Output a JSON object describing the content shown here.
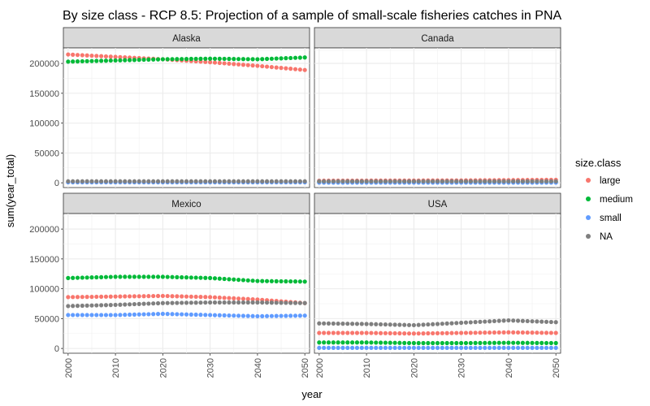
{
  "chart_data": {
    "type": "scatter",
    "title": "By size class - RCP 8.5: Projection of a sample of small-scale fisheries catches in PNA",
    "xlabel": "year",
    "ylabel": "sum(year_total)",
    "xlim": [
      1999,
      2051
    ],
    "ylim": [
      -8000,
      226000
    ],
    "x_ticks": [
      "2000",
      "2010",
      "2020",
      "2030",
      "2040",
      "2050"
    ],
    "y_ticks": [
      "0",
      "50000",
      "100000",
      "150000",
      "200000"
    ],
    "x_start": 2000,
    "x_end": 2050,
    "grid": true,
    "legend_title": "size.class",
    "legend_position": "right",
    "series_colors": {
      "large": "#F8766D",
      "medium": "#00BA38",
      "small": "#619CFF",
      "NA": "#7F7F7F"
    },
    "legend": [
      "large",
      "medium",
      "small",
      "NA"
    ],
    "panels": [
      {
        "label": "Alaska",
        "series": [
          {
            "name": "large",
            "anchors": [
              [
                2000,
                215000
              ],
              [
                2010,
                211000
              ],
              [
                2020,
                207000
              ],
              [
                2030,
                202000
              ],
              [
                2040,
                196000
              ],
              [
                2050,
                189000
              ]
            ]
          },
          {
            "name": "medium",
            "anchors": [
              [
                2000,
                203000
              ],
              [
                2010,
                205000
              ],
              [
                2020,
                207000
              ],
              [
                2030,
                208000
              ],
              [
                2040,
                207000
              ],
              [
                2050,
                210000
              ]
            ]
          },
          {
            "name": "small",
            "anchors": [
              [
                2000,
                800
              ],
              [
                2050,
                800
              ]
            ]
          },
          {
            "name": "NA",
            "anchors": [
              [
                2000,
                2500
              ],
              [
                2050,
                2500
              ]
            ]
          }
        ]
      },
      {
        "label": "Canada",
        "series": [
          {
            "name": "large",
            "anchors": [
              [
                2000,
                3500
              ],
              [
                2030,
                4000
              ],
              [
                2050,
                5000
              ]
            ]
          },
          {
            "name": "medium",
            "anchors": [
              [
                2000,
                1500
              ],
              [
                2050,
                1500
              ]
            ]
          },
          {
            "name": "small",
            "anchors": [
              [
                2000,
                300
              ],
              [
                2050,
                300
              ]
            ]
          },
          {
            "name": "NA",
            "anchors": [
              [
                2000,
                2500
              ],
              [
                2050,
                2500
              ]
            ]
          }
        ]
      },
      {
        "label": "Mexico",
        "series": [
          {
            "name": "large",
            "anchors": [
              [
                2000,
                86000
              ],
              [
                2010,
                87000
              ],
              [
                2020,
                88000
              ],
              [
                2030,
                86000
              ],
              [
                2040,
                82000
              ],
              [
                2050,
                76000
              ]
            ]
          },
          {
            "name": "medium",
            "anchors": [
              [
                2000,
                118000
              ],
              [
                2010,
                120000
              ],
              [
                2020,
                120000
              ],
              [
                2030,
                118000
              ],
              [
                2040,
                113000
              ],
              [
                2050,
                112000
              ]
            ]
          },
          {
            "name": "small",
            "anchors": [
              [
                2000,
                56000
              ],
              [
                2010,
                56000
              ],
              [
                2020,
                58000
              ],
              [
                2030,
                56000
              ],
              [
                2040,
                54000
              ],
              [
                2050,
                55000
              ]
            ]
          },
          {
            "name": "NA",
            "anchors": [
              [
                2000,
                71000
              ],
              [
                2010,
                73000
              ],
              [
                2020,
                76000
              ],
              [
                2030,
                77000
              ],
              [
                2040,
                77000
              ],
              [
                2050,
                76000
              ]
            ]
          }
        ]
      },
      {
        "label": "USA",
        "series": [
          {
            "name": "large",
            "anchors": [
              [
                2000,
                26000
              ],
              [
                2010,
                26000
              ],
              [
                2020,
                25000
              ],
              [
                2030,
                26000
              ],
              [
                2040,
                27000
              ],
              [
                2050,
                26000
              ]
            ]
          },
          {
            "name": "medium",
            "anchors": [
              [
                2000,
                10000
              ],
              [
                2010,
                10000
              ],
              [
                2020,
                9000
              ],
              [
                2030,
                9000
              ],
              [
                2040,
                9500
              ],
              [
                2050,
                9000
              ]
            ]
          },
          {
            "name": "small",
            "anchors": [
              [
                2000,
                1000
              ],
              [
                2050,
                1000
              ]
            ]
          },
          {
            "name": "NA",
            "anchors": [
              [
                2000,
                42000
              ],
              [
                2010,
                41000
              ],
              [
                2020,
                39000
              ],
              [
                2030,
                43000
              ],
              [
                2040,
                47000
              ],
              [
                2050,
                44000
              ]
            ]
          }
        ]
      }
    ]
  }
}
